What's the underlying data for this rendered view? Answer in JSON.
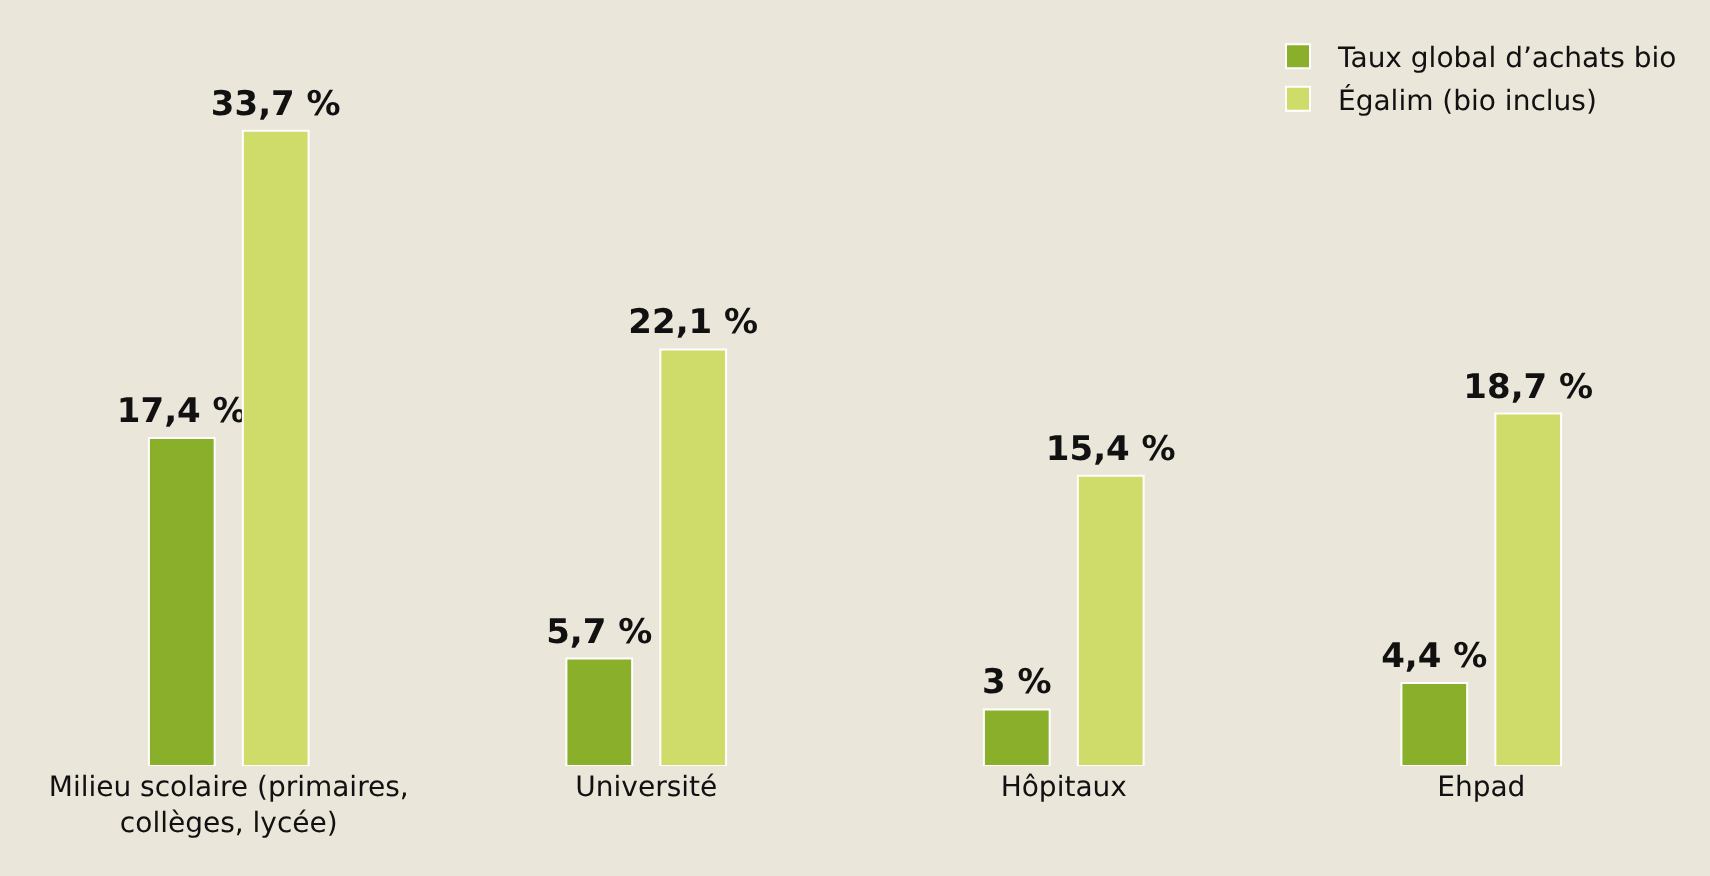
{
  "chart_data": {
    "type": "bar",
    "categories": [
      "Milieu scolaire (primaires, collèges, lycée)",
      "Université",
      "Hôpitaux",
      "Ehpad"
    ],
    "series": [
      {
        "name": "Taux global d’achats bio",
        "color": "#8aaf2a",
        "values": [
          17.4,
          5.7,
          3,
          4.4
        ],
        "value_labels": [
          "17,4 %",
          "5,7 %",
          "3 %",
          "4,4 %"
        ]
      },
      {
        "name": "Égalim (bio inclus)",
        "color": "#cfdc6a",
        "values": [
          33.7,
          22.1,
          15.4,
          18.7
        ],
        "value_labels": [
          "33,7 %",
          "22,1 %",
          "15,4 %",
          "18,7 %"
        ]
      }
    ],
    "legend": "top right",
    "grid": false
  }
}
